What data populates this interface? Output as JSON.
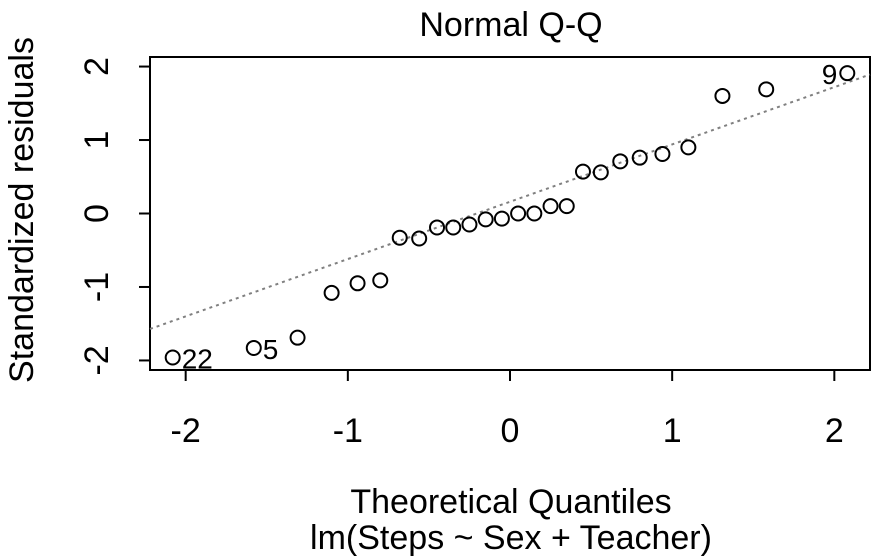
{
  "chart_data": {
    "type": "scatter",
    "title": "Normal Q-Q",
    "xlabel": "Theoretical Quantiles",
    "subtitle": "lm(Steps ~ Sex + Teacher)",
    "ylabel": "Standardized residuals",
    "xlim": [
      -2.22,
      2.22
    ],
    "ylim": [
      -2.13,
      2.13
    ],
    "x_ticks": [
      -2,
      -1,
      0,
      1,
      2
    ],
    "x_tick_labels": [
      "-2",
      "-1",
      "0",
      "1",
      "2"
    ],
    "y_ticks": [
      -2,
      -1,
      0,
      1,
      2
    ],
    "y_tick_labels": [
      "-2",
      "-1",
      "0",
      "1",
      "2"
    ],
    "grid": false,
    "reference_line": {
      "intercept": 0.16,
      "slope": 0.78,
      "style": "dotted",
      "color": "#808080"
    },
    "points": [
      {
        "x": -2.08,
        "y": -1.96
      },
      {
        "x": -1.58,
        "y": -1.83
      },
      {
        "x": -1.31,
        "y": -1.69
      },
      {
        "x": -1.1,
        "y": -1.08
      },
      {
        "x": -0.94,
        "y": -0.95
      },
      {
        "x": -0.8,
        "y": -0.91
      },
      {
        "x": -0.68,
        "y": -0.33
      },
      {
        "x": -0.56,
        "y": -0.34
      },
      {
        "x": -0.45,
        "y": -0.19
      },
      {
        "x": -0.35,
        "y": -0.19
      },
      {
        "x": -0.25,
        "y": -0.15
      },
      {
        "x": -0.15,
        "y": -0.08
      },
      {
        "x": -0.05,
        "y": -0.07
      },
      {
        "x": 0.05,
        "y": 0.0
      },
      {
        "x": 0.15,
        "y": 0.0
      },
      {
        "x": 0.25,
        "y": 0.1
      },
      {
        "x": 0.35,
        "y": 0.1
      },
      {
        "x": 0.45,
        "y": 0.57
      },
      {
        "x": 0.56,
        "y": 0.56
      },
      {
        "x": 0.68,
        "y": 0.71
      },
      {
        "x": 0.8,
        "y": 0.76
      },
      {
        "x": 0.94,
        "y": 0.81
      },
      {
        "x": 1.1,
        "y": 0.9
      },
      {
        "x": 1.31,
        "y": 1.6
      },
      {
        "x": 1.58,
        "y": 1.69
      },
      {
        "x": 2.08,
        "y": 1.91
      }
    ],
    "point_labels": [
      {
        "text": "22",
        "x": -2.08,
        "y": -1.96
      },
      {
        "text": "5",
        "x": -1.58,
        "y": -1.83
      },
      {
        "text": "9",
        "x": 2.08,
        "y": 1.91
      }
    ]
  }
}
